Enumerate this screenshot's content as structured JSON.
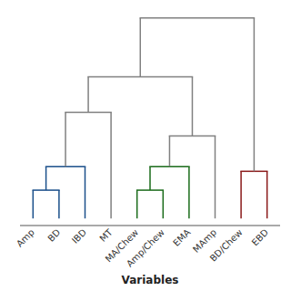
{
  "chart_data": {
    "type": "dendrogram",
    "xlabel": "Variables",
    "categories": [
      "Amp",
      "BD",
      "IBD",
      "MT",
      "MA/Chew",
      "Amp/Chew",
      "EMA",
      "MAmp",
      "BD/Chew",
      "EBD"
    ],
    "merges": [
      {
        "children": [
          0,
          1
        ],
        "height": 1.2,
        "color": "#1a4f8a"
      },
      {
        "children": [
          10,
          2
        ],
        "height": 2.2,
        "color": "#1a4f8a"
      },
      {
        "children": [
          4,
          5
        ],
        "height": 1.2,
        "color": "#1a6b1a"
      },
      {
        "children": [
          12,
          6
        ],
        "height": 2.2,
        "color": "#1a6b1a"
      },
      {
        "children": [
          8,
          9
        ],
        "height": 2.0,
        "color": "#8b1a1a"
      },
      {
        "children": [
          11,
          3
        ],
        "height": 4.5,
        "color": "#808080"
      },
      {
        "children": [
          13,
          7
        ],
        "height": 3.5,
        "color": "#808080"
      },
      {
        "children": [
          15,
          16
        ],
        "height": 6.0,
        "color": "#808080"
      },
      {
        "children": [
          17,
          14
        ],
        "height": 8.5,
        "color": "#808080"
      }
    ],
    "ylim": [
      -0.3,
      8.8
    ],
    "tick_labels": "x"
  }
}
